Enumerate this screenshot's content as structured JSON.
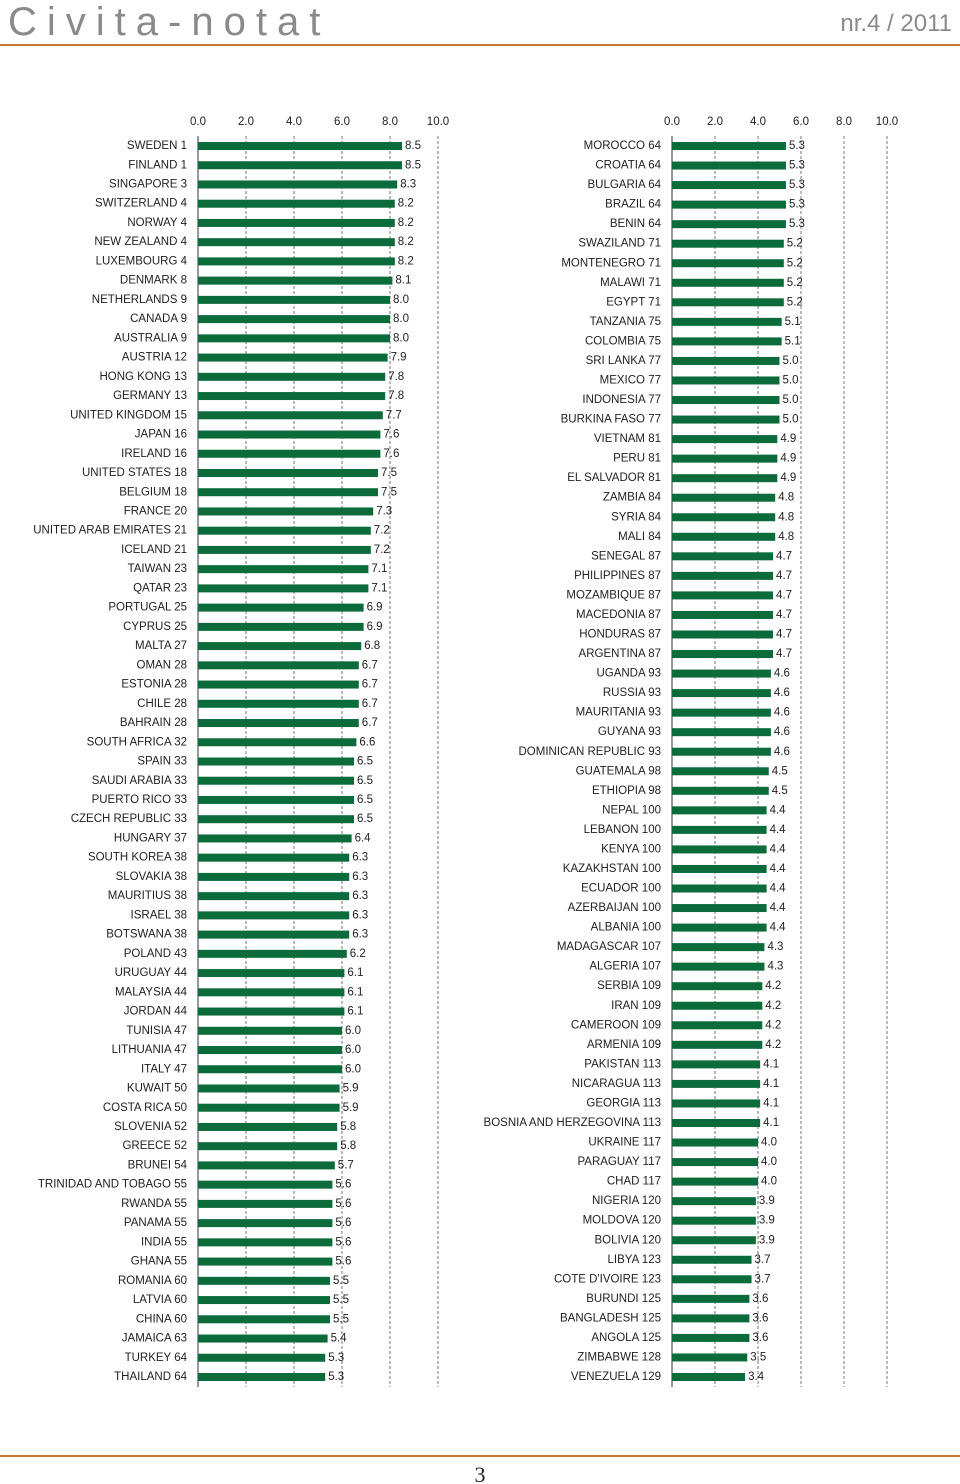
{
  "header": {
    "title": "Civita-notat",
    "issue": "nr.4 / 2011"
  },
  "chart_data": [
    {
      "type": "bar",
      "orientation": "horizontal",
      "color": "#0b6b3a",
      "grid": true,
      "xlim": [
        0,
        10
      ],
      "xticks": [
        {
          "value": 0,
          "label": "0.0"
        },
        {
          "value": 2,
          "label": "2.0"
        },
        {
          "value": 4,
          "label": "4.0"
        },
        {
          "value": 6,
          "label": "6.0"
        },
        {
          "value": 8,
          "label": "8.0"
        },
        {
          "value": 10,
          "label": "10.0"
        }
      ],
      "categories": [
        "SWEDEN 1",
        "FINLAND 1",
        "SINGAPORE 3",
        "SWITZERLAND 4",
        "NORWAY 4",
        "NEW ZEALAND 4",
        "LUXEMBOURG 4",
        "DENMARK 8",
        "NETHERLANDS 9",
        "CANADA 9",
        "AUSTRALIA 9",
        "AUSTRIA 12",
        "HONG KONG 13",
        "GERMANY 13",
        "UNITED KINGDOM 15",
        "JAPAN 16",
        "IRELAND 16",
        "UNITED STATES 18",
        "BELGIUM 18",
        "FRANCE 20",
        "UNITED ARAB EMIRATES 21",
        "ICELAND 21",
        "TAIWAN 23",
        "QATAR 23",
        "PORTUGAL 25",
        "CYPRUS 25",
        "MALTA 27",
        "OMAN 28",
        "ESTONIA 28",
        "CHILE 28",
        "BAHRAIN 28",
        "SOUTH AFRICA 32",
        "SPAIN 33",
        "SAUDI ARABIA 33",
        "PUERTO RICO 33",
        "CZECH REPUBLIC 33",
        "HUNGARY 37",
        "SOUTH KOREA 38",
        "SLOVAKIA 38",
        "MAURITIUS 38",
        "ISRAEL 38",
        "BOTSWANA 38",
        "POLAND 43",
        "URUGUAY 44",
        "MALAYSIA 44",
        "JORDAN 44",
        "TUNISIA 47",
        "LITHUANIA 47",
        "ITALY 47",
        "KUWAIT 50",
        "COSTA RICA 50",
        "SLOVENIA 52",
        "GREECE 52",
        "BRUNEI 54",
        "TRINIDAD AND TOBAGO 55",
        "RWANDA 55",
        "PANAMA 55",
        "INDIA 55",
        "GHANA 55",
        "ROMANIA 60",
        "LATVIA 60",
        "CHINA 60",
        "JAMAICA 63",
        "TURKEY 64",
        "THAILAND 64"
      ],
      "values": [
        8.5,
        8.5,
        8.3,
        8.2,
        8.2,
        8.2,
        8.2,
        8.1,
        8.0,
        8.0,
        8.0,
        7.9,
        7.8,
        7.8,
        7.7,
        7.6,
        7.6,
        7.5,
        7.5,
        7.3,
        7.2,
        7.2,
        7.1,
        7.1,
        6.9,
        6.9,
        6.8,
        6.7,
        6.7,
        6.7,
        6.7,
        6.6,
        6.5,
        6.5,
        6.5,
        6.5,
        6.4,
        6.3,
        6.3,
        6.3,
        6.3,
        6.3,
        6.2,
        6.1,
        6.1,
        6.1,
        6.0,
        6.0,
        6.0,
        5.9,
        5.9,
        5.8,
        5.8,
        5.7,
        5.6,
        5.6,
        5.6,
        5.6,
        5.6,
        5.5,
        5.5,
        5.5,
        5.4,
        5.3,
        5.3
      ],
      "value_labels": [
        "8.5",
        "8.5",
        "8.3",
        "8.2",
        "8.2",
        "8.2",
        "8.2",
        "8.1",
        "8.0",
        "8.0",
        "8.0",
        "7.9",
        "7.8",
        "7.8",
        "7.7",
        "7.6",
        "7.6",
        "7.5",
        "7.5",
        "7.3",
        "7.2",
        "7.2",
        "7.1",
        "7.1",
        "6.9",
        "6.9",
        "6.8",
        "6.7",
        "6.7",
        "6.7",
        "6.7",
        "6.6",
        "6.5",
        "6.5",
        "6.5",
        "6.5",
        "6.4",
        "6.3",
        "6.3",
        "6.3",
        "6.3",
        "6.3",
        "6.2",
        "6.1",
        "6.1",
        "6.1",
        "6.0",
        "6.0",
        "6.0",
        "5.9",
        "5.9",
        "5.8",
        "5.8",
        "5.7",
        "5.6",
        "5.6",
        "5.6",
        "5.6",
        "5.6",
        "5.5",
        "5.5",
        "5.5",
        "5.4",
        "5.3",
        "5.3"
      ]
    },
    {
      "type": "bar",
      "orientation": "horizontal",
      "color": "#0b6b3a",
      "grid": true,
      "xlim": [
        0,
        10
      ],
      "xticks": [
        {
          "value": 0,
          "label": "0.0"
        },
        {
          "value": 2,
          "label": "2.0"
        },
        {
          "value": 4,
          "label": "4.0"
        },
        {
          "value": 6,
          "label": "6.0"
        },
        {
          "value": 8,
          "label": "8.0"
        },
        {
          "value": 10,
          "label": "10.0"
        }
      ],
      "categories": [
        "MOROCCO 64",
        "CROATIA 64",
        "BULGARIA 64",
        "BRAZIL 64",
        "BENIN 64",
        "SWAZILAND 71",
        "MONTENEGRO 71",
        "MALAWI 71",
        "EGYPT 71",
        "TANZANIA 75",
        "COLOMBIA 75",
        "SRI LANKA 77",
        "MEXICO 77",
        "INDONESIA 77",
        "BURKINA FASO 77",
        "VIETNAM 81",
        "PERU 81",
        "EL SALVADOR 81",
        "ZAMBIA 84",
        "SYRIA 84",
        "MALI 84",
        "SENEGAL 87",
        "PHILIPPINES 87",
        "MOZAMBIQUE 87",
        "MACEDONIA 87",
        "HONDURAS 87",
        "ARGENTINA 87",
        "UGANDA 93",
        "RUSSIA 93",
        "MAURITANIA 93",
        "GUYANA 93",
        "DOMINICAN REPUBLIC 93",
        "GUATEMALA 98",
        "ETHIOPIA 98",
        "NEPAL 100",
        "LEBANON 100",
        "KENYA 100",
        "KAZAKHSTAN 100",
        "ECUADOR 100",
        "AZERBAIJAN 100",
        "ALBANIA 100",
        "MADAGASCAR 107",
        "ALGERIA 107",
        "SERBIA 109",
        "IRAN 109",
        "CAMEROON 109",
        "ARMENIA 109",
        "PAKISTAN 113",
        "NICARAGUA 113",
        "GEORGIA 113",
        "BOSNIA AND HERZEGOVINA 113",
        "UKRAINE 117",
        "PARAGUAY 117",
        "CHAD 117",
        "NIGERIA 120",
        "MOLDOVA 120",
        "BOLIVIA 120",
        "LIBYA 123",
        "COTE D'IVOIRE 123",
        "BURUNDI 125",
        "BANGLADESH 125",
        "ANGOLA 125",
        "ZIMBABWE 128",
        "VENEZUELA 129"
      ],
      "values": [
        5.3,
        5.3,
        5.3,
        5.3,
        5.3,
        5.2,
        5.2,
        5.2,
        5.2,
        5.1,
        5.1,
        5.0,
        5.0,
        5.0,
        5.0,
        4.9,
        4.9,
        4.9,
        4.8,
        4.8,
        4.8,
        4.7,
        4.7,
        4.7,
        4.7,
        4.7,
        4.7,
        4.6,
        4.6,
        4.6,
        4.6,
        4.6,
        4.5,
        4.5,
        4.4,
        4.4,
        4.4,
        4.4,
        4.4,
        4.4,
        4.4,
        4.3,
        4.3,
        4.2,
        4.2,
        4.2,
        4.2,
        4.1,
        4.1,
        4.1,
        4.1,
        4.0,
        4.0,
        4.0,
        3.9,
        3.9,
        3.9,
        3.7,
        3.7,
        3.6,
        3.6,
        3.6,
        3.5,
        3.4
      ],
      "value_labels": [
        "5.3",
        "5.3",
        "5.3",
        "5.3",
        "5.3",
        "5.2",
        "5.2",
        "5.2",
        "5.2",
        "5.1",
        "5.1",
        "5.0",
        "5.0",
        "5.0",
        "5.0",
        "4.9",
        "4.9",
        "4.9",
        "4.8",
        "4.8",
        "4.8",
        "4.7",
        "4.7",
        "4.7",
        "4.7",
        "4.7",
        "4.7",
        "4.6",
        "4.6",
        "4.6",
        "4.6",
        "4.6",
        "4.5",
        "4.5",
        "4.4",
        "4.4",
        "4.4",
        "4.4",
        "4.4",
        "4.4",
        "4.4",
        "4.3",
        "4.3",
        "4.2",
        "4.2",
        "4.2",
        "4.2",
        "4.1",
        "4.1",
        "4.1",
        "4.1",
        "4.0",
        "4.0",
        "4.0",
        "3.9",
        "3.9",
        "3.9",
        "3.7",
        "3.7",
        "3.6",
        "3.6",
        "3.6",
        "3.5",
        "3.4"
      ]
    }
  ],
  "footer": {
    "page": "3"
  }
}
